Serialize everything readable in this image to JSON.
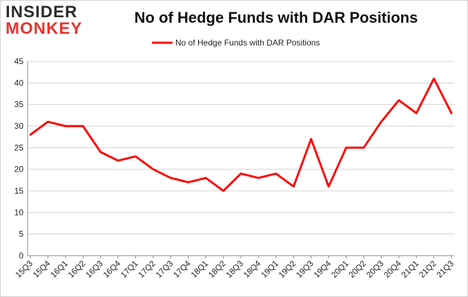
{
  "logo": {
    "line1": "INSIDER",
    "line2": "MONKEY"
  },
  "chart_data": {
    "type": "line",
    "title": "No of Hedge Funds with DAR Positions",
    "xlabel": "",
    "ylabel": "",
    "categories": [
      "15Q3",
      "15Q4",
      "16Q1",
      "16Q2",
      "16Q3",
      "16Q4",
      "17Q1",
      "17Q2",
      "17Q3",
      "17Q4",
      "18Q1",
      "18Q2",
      "18Q3",
      "18Q4",
      "19Q1",
      "19Q2",
      "19Q3",
      "19Q4",
      "20Q1",
      "20Q2",
      "20Q3",
      "20Q4",
      "21Q1",
      "21Q2",
      "21Q3"
    ],
    "series": [
      {
        "name": "No of Hedge Funds with DAR Positions",
        "values": [
          28,
          31,
          30,
          30,
          24,
          22,
          23,
          20,
          18,
          17,
          18,
          15,
          19,
          18,
          19,
          16,
          27,
          16,
          25,
          25,
          31,
          36,
          33,
          41,
          33
        ]
      }
    ],
    "ylim": [
      0,
      45
    ],
    "yticks": [
      0,
      5,
      10,
      15,
      20,
      25,
      30,
      35,
      40,
      45
    ],
    "grid": true,
    "legend_position": "top-center",
    "line_color": "#ff0000"
  }
}
